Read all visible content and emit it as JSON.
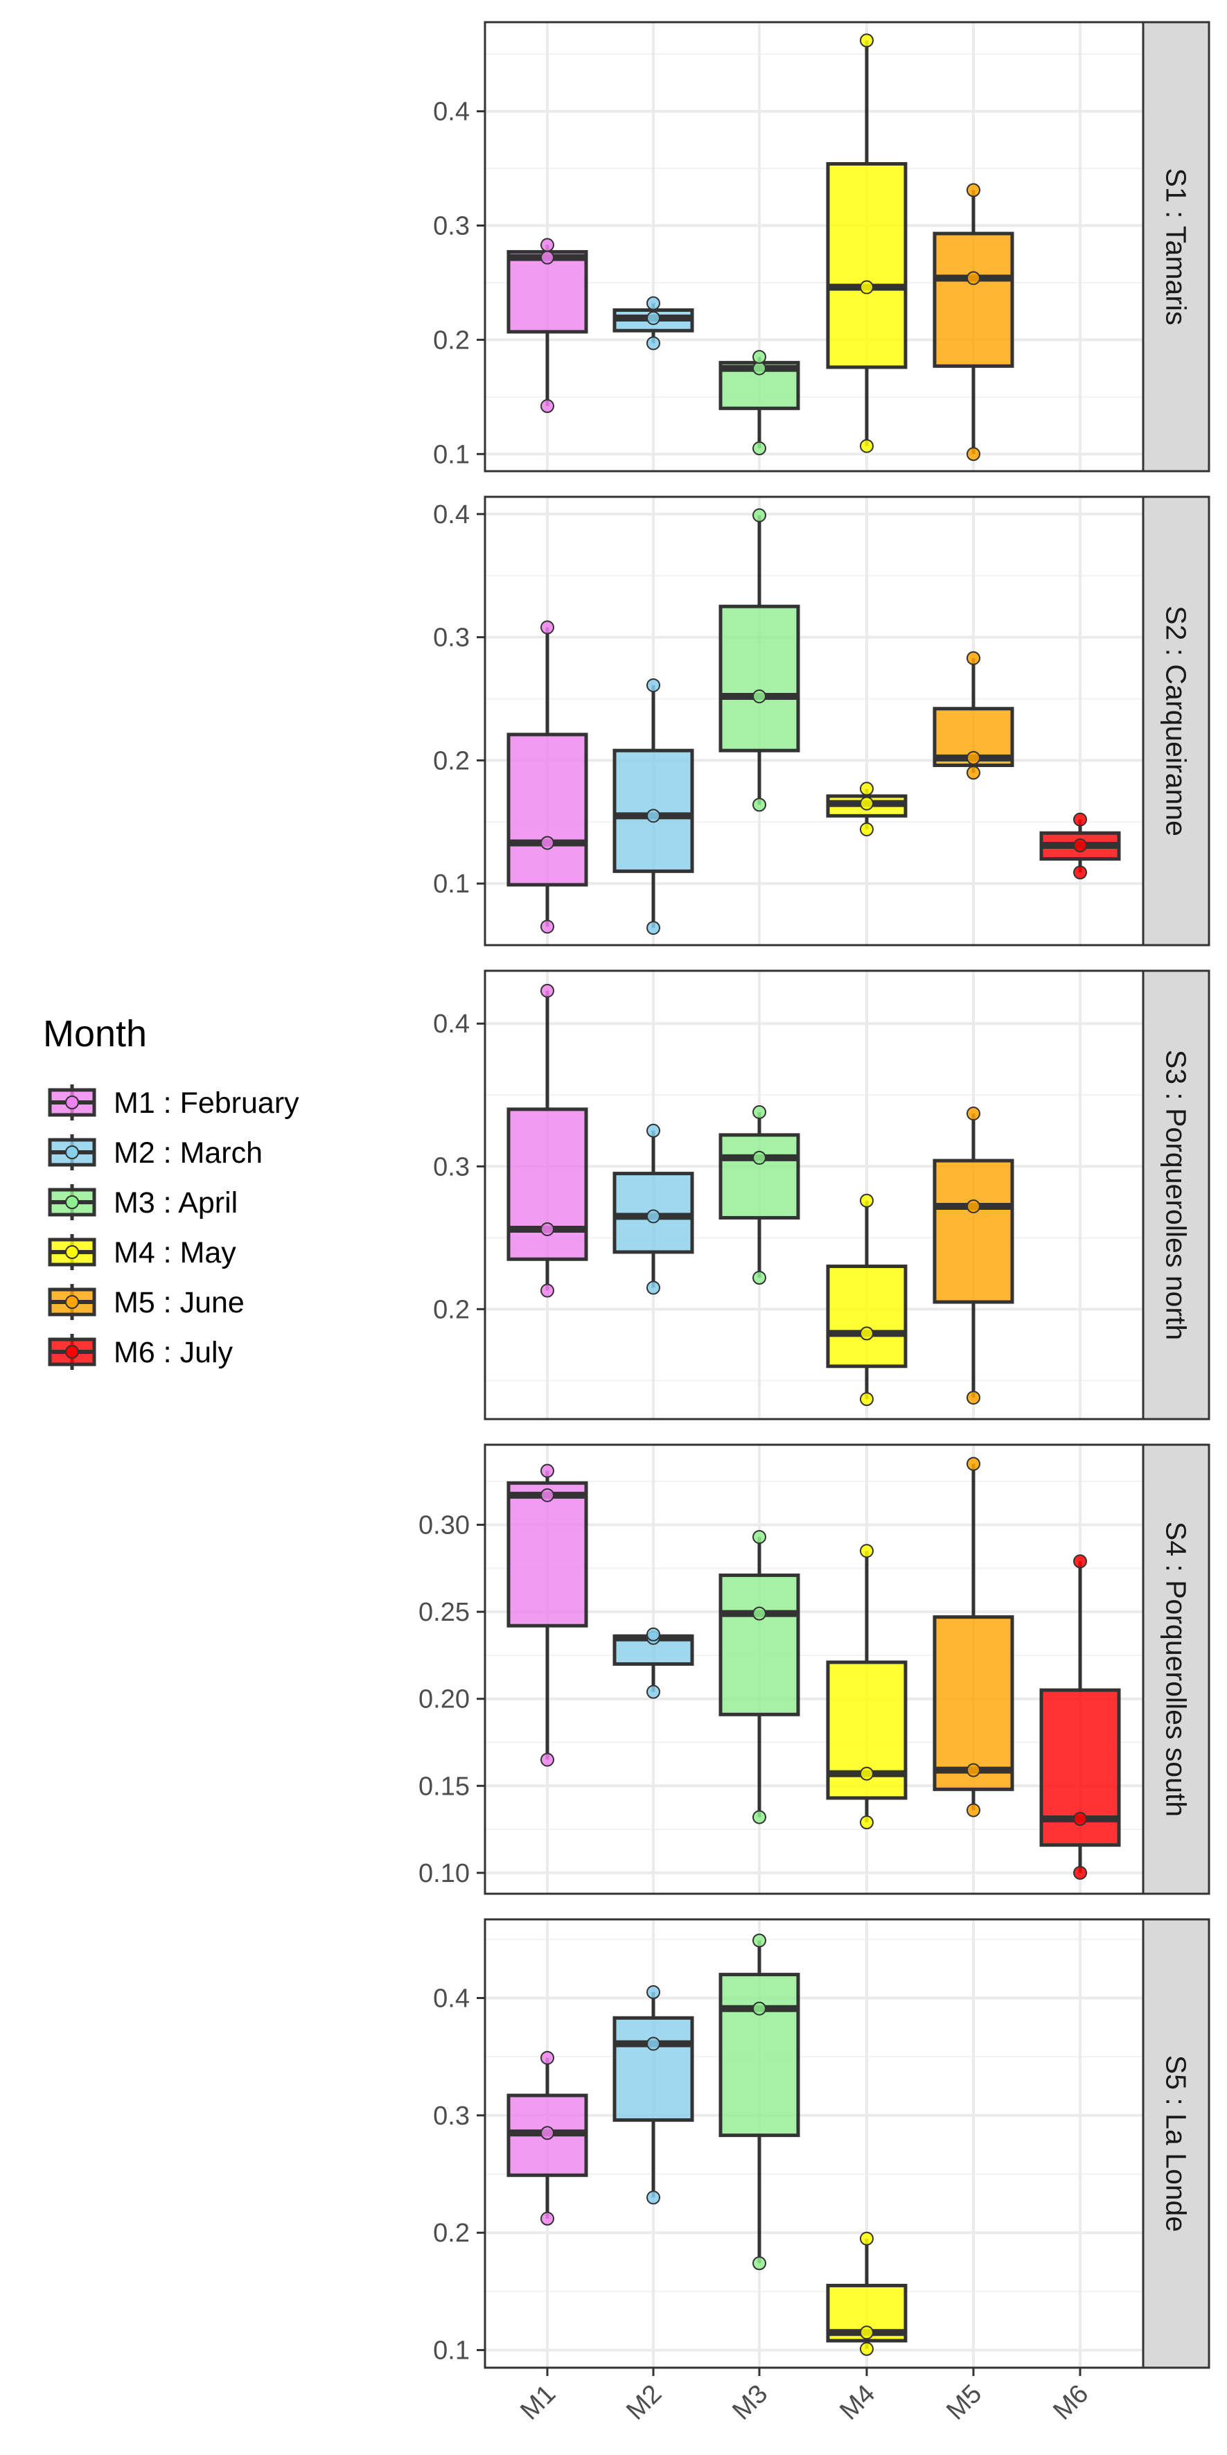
{
  "chart_data": {
    "type": "box",
    "legend": {
      "title": "Month",
      "entries": [
        {
          "label": "M1 : February",
          "color": "#EE82EE"
        },
        {
          "label": "M2 : March",
          "color": "#87CEEB"
        },
        {
          "label": "M3 : April",
          "color": "#90EE90"
        },
        {
          "label": "M4 : May",
          "color": "#FFFF00"
        },
        {
          "label": "M5 : June",
          "color": "#FFA500"
        },
        {
          "label": "M6 : July",
          "color": "#FF0000"
        }
      ],
      "placement": "left"
    },
    "categories": [
      "M1",
      "M2",
      "M3",
      "M4",
      "M5",
      "M6"
    ],
    "grid": true,
    "facets": [
      {
        "label": "S1 : Tamaris",
        "yticks": [
          0.1,
          0.2,
          0.3,
          0.4
        ],
        "yticklabels": [
          "0.1",
          "0.2",
          "0.3",
          "0.4"
        ],
        "ylim": [
          0.085,
          0.478
        ],
        "boxes": [
          {
            "category": "M1",
            "min": 0.142,
            "q1": 0.207,
            "median": 0.272,
            "q3": 0.277,
            "max": 0.283,
            "points": [
              0.142,
              0.272,
              0.283
            ]
          },
          {
            "category": "M2",
            "min": 0.197,
            "q1": 0.208,
            "median": 0.219,
            "q3": 0.226,
            "max": 0.232,
            "points": [
              0.197,
              0.219,
              0.232
            ]
          },
          {
            "category": "M3",
            "min": 0.105,
            "q1": 0.14,
            "median": 0.175,
            "q3": 0.18,
            "max": 0.185,
            "points": [
              0.105,
              0.175,
              0.185
            ]
          },
          {
            "category": "M4",
            "min": 0.107,
            "q1": 0.176,
            "median": 0.246,
            "q3": 0.354,
            "max": 0.462,
            "points": [
              0.107,
              0.246,
              0.462
            ]
          },
          {
            "category": "M5",
            "min": 0.1,
            "q1": 0.177,
            "median": 0.254,
            "q3": 0.293,
            "max": 0.331,
            "points": [
              0.1,
              0.254,
              0.331
            ]
          }
        ]
      },
      {
        "label": "S2 : Carqueiranne",
        "yticks": [
          0.1,
          0.2,
          0.3,
          0.4
        ],
        "yticklabels": [
          "0.1",
          "0.2",
          "0.3",
          "0.4"
        ],
        "ylim": [
          0.05,
          0.414
        ],
        "boxes": [
          {
            "category": "M1",
            "min": 0.065,
            "q1": 0.099,
            "median": 0.133,
            "q3": 0.221,
            "max": 0.308,
            "points": [
              0.065,
              0.133,
              0.308
            ]
          },
          {
            "category": "M2",
            "min": 0.064,
            "q1": 0.11,
            "median": 0.155,
            "q3": 0.208,
            "max": 0.261,
            "points": [
              0.064,
              0.155,
              0.261
            ]
          },
          {
            "category": "M3",
            "min": 0.164,
            "q1": 0.208,
            "median": 0.252,
            "q3": 0.325,
            "max": 0.399,
            "points": [
              0.164,
              0.252,
              0.399
            ]
          },
          {
            "category": "M4",
            "min": 0.144,
            "q1": 0.155,
            "median": 0.165,
            "q3": 0.171,
            "max": 0.177,
            "points": [
              0.144,
              0.165,
              0.177
            ]
          },
          {
            "category": "M5",
            "min": 0.19,
            "q1": 0.196,
            "median": 0.202,
            "q3": 0.242,
            "max": 0.283,
            "points": [
              0.19,
              0.202,
              0.283
            ]
          },
          {
            "category": "M6",
            "min": 0.109,
            "q1": 0.12,
            "median": 0.131,
            "q3": 0.141,
            "max": 0.152,
            "points": [
              0.109,
              0.131,
              0.152
            ]
          }
        ]
      },
      {
        "label": "S3 : Porquerolles north",
        "yticks": [
          0.2,
          0.3,
          0.4
        ],
        "yticklabels": [
          "0.2",
          "0.3",
          "0.4"
        ],
        "ylim": [
          0.123,
          0.437
        ],
        "boxes": [
          {
            "category": "M1",
            "min": 0.213,
            "q1": 0.235,
            "median": 0.256,
            "q3": 0.34,
            "max": 0.423,
            "points": [
              0.213,
              0.256,
              0.423
            ]
          },
          {
            "category": "M2",
            "min": 0.215,
            "q1": 0.24,
            "median": 0.265,
            "q3": 0.295,
            "max": 0.325,
            "points": [
              0.215,
              0.265,
              0.325
            ]
          },
          {
            "category": "M3",
            "min": 0.222,
            "q1": 0.264,
            "median": 0.306,
            "q3": 0.322,
            "max": 0.338,
            "points": [
              0.222,
              0.306,
              0.338
            ]
          },
          {
            "category": "M4",
            "min": 0.137,
            "q1": 0.16,
            "median": 0.183,
            "q3": 0.23,
            "max": 0.276,
            "points": [
              0.137,
              0.183,
              0.276
            ]
          },
          {
            "category": "M5",
            "min": 0.138,
            "q1": 0.205,
            "median": 0.272,
            "q3": 0.304,
            "max": 0.337,
            "points": [
              0.138,
              0.272,
              0.337
            ]
          }
        ]
      },
      {
        "label": "S4 : Porquerolles south",
        "yticks": [
          0.1,
          0.15,
          0.2,
          0.25,
          0.3
        ],
        "yticklabels": [
          "0.10",
          "0.15",
          "0.20",
          "0.25",
          "0.30"
        ],
        "ylim": [
          0.088,
          0.346
        ],
        "boxes": [
          {
            "category": "M1",
            "min": 0.165,
            "q1": 0.242,
            "median": 0.317,
            "q3": 0.324,
            "max": 0.331,
            "points": [
              0.165,
              0.317,
              0.331
            ]
          },
          {
            "category": "M2",
            "min": 0.204,
            "q1": 0.22,
            "median": 0.235,
            "q3": 0.236,
            "max": 0.237,
            "points": [
              0.204,
              0.235,
              0.237
            ]
          },
          {
            "category": "M3",
            "min": 0.132,
            "q1": 0.191,
            "median": 0.249,
            "q3": 0.271,
            "max": 0.293,
            "points": [
              0.132,
              0.249,
              0.293
            ]
          },
          {
            "category": "M4",
            "min": 0.129,
            "q1": 0.143,
            "median": 0.157,
            "q3": 0.221,
            "max": 0.285,
            "points": [
              0.129,
              0.157,
              0.285
            ]
          },
          {
            "category": "M5",
            "min": 0.136,
            "q1": 0.148,
            "median": 0.159,
            "q3": 0.247,
            "max": 0.335,
            "points": [
              0.136,
              0.159,
              0.335
            ]
          },
          {
            "category": "M6",
            "min": 0.1,
            "q1": 0.116,
            "median": 0.131,
            "q3": 0.205,
            "max": 0.279,
            "points": [
              0.1,
              0.131,
              0.279
            ]
          }
        ]
      },
      {
        "label": "S5 : La Londe",
        "yticks": [
          0.1,
          0.2,
          0.3,
          0.4
        ],
        "yticklabels": [
          "0.1",
          "0.2",
          "0.3",
          "0.4"
        ],
        "ylim": [
          0.085,
          0.467
        ],
        "boxes": [
          {
            "category": "M1",
            "min": 0.212,
            "q1": 0.249,
            "median": 0.285,
            "q3": 0.317,
            "max": 0.349,
            "points": [
              0.212,
              0.285,
              0.349
            ]
          },
          {
            "category": "M2",
            "min": 0.23,
            "q1": 0.296,
            "median": 0.361,
            "q3": 0.383,
            "max": 0.405,
            "points": [
              0.23,
              0.361,
              0.405
            ]
          },
          {
            "category": "M3",
            "min": 0.174,
            "q1": 0.283,
            "median": 0.391,
            "q3": 0.42,
            "max": 0.449,
            "points": [
              0.174,
              0.391,
              0.449
            ]
          },
          {
            "category": "M4",
            "min": 0.101,
            "q1": 0.108,
            "median": 0.115,
            "q3": 0.155,
            "max": 0.195,
            "points": [
              0.101,
              0.115,
              0.195
            ]
          }
        ]
      }
    ]
  }
}
